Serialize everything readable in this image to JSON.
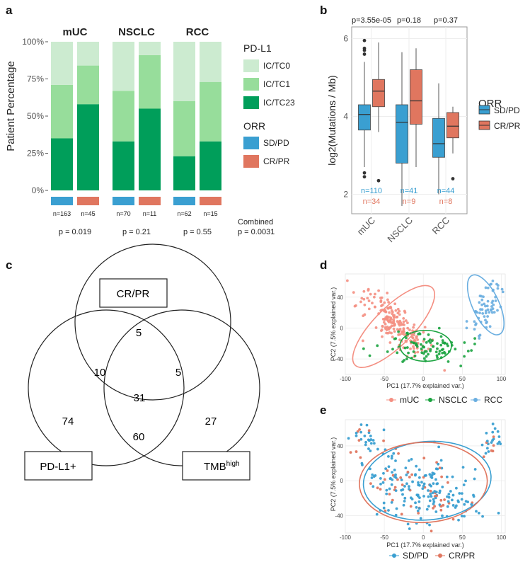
{
  "panels": {
    "a": "a",
    "b": "b",
    "c": "c",
    "d": "d",
    "e": "e"
  },
  "colors": {
    "ic_tc0": "#ccebd0",
    "ic_tc1": "#97dd9b",
    "ic_tc23": "#009e5a",
    "sdpd": "#3a9fd1",
    "crpr": "#e0765f",
    "muc": "#f48f82",
    "nsclc": "#1aa33f",
    "rcc": "#6aaee0"
  },
  "chart_data": [
    {
      "id": "a",
      "type": "bar",
      "ylabel": "Patient Percentage",
      "yticks": [
        "0%",
        "25%",
        "50%",
        "75%",
        "100%"
      ],
      "groups": [
        {
          "name": "mUC",
          "n_sdpd": "n=163",
          "n_crpr": "n=45",
          "p": "p = 0.019"
        },
        {
          "name": "NSCLC",
          "n_sdpd": "n=70",
          "n_crpr": "n=11",
          "p": "p = 0.21"
        },
        {
          "name": "RCC",
          "n_sdpd": "n=62",
          "n_crpr": "n=15",
          "p": "p = 0.55"
        }
      ],
      "bars": [
        {
          "group": "mUC",
          "orr": "SD/PD",
          "ic_tc23": 35,
          "ic_tc1": 36,
          "ic_tc0": 29
        },
        {
          "group": "mUC",
          "orr": "CR/PR",
          "ic_tc23": 58,
          "ic_tc1": 26,
          "ic_tc0": 16
        },
        {
          "group": "NSCLC",
          "orr": "SD/PD",
          "ic_tc23": 33,
          "ic_tc1": 34,
          "ic_tc0": 33
        },
        {
          "group": "NSCLC",
          "orr": "CR/PR",
          "ic_tc23": 55,
          "ic_tc1": 36,
          "ic_tc0": 9
        },
        {
          "group": "RCC",
          "orr": "SD/PD",
          "ic_tc23": 23,
          "ic_tc1": 37,
          "ic_tc0": 40
        },
        {
          "group": "RCC",
          "orr": "CR/PR",
          "ic_tc23": 33,
          "ic_tc1": 40,
          "ic_tc0": 27
        }
      ],
      "legend_pdl1_title": "PD-L1",
      "legend_pdl1": [
        "IC/TC0",
        "IC/TC1",
        "IC/TC23"
      ],
      "legend_orr_title": "ORR",
      "legend_orr": [
        "SD/PD",
        "CR/PR"
      ],
      "combined_label": "Combined",
      "combined_p": "p = 0.0031"
    },
    {
      "id": "b",
      "type": "box",
      "ylabel": "log2(Mutations / Mb)",
      "ylim": [
        1.5,
        6.3
      ],
      "yticks": [
        2,
        4,
        6
      ],
      "categories": [
        "mUC",
        "NSCLC",
        "RCC"
      ],
      "pvalues": [
        "p=3.55e-05",
        "p=0.18",
        "p=0.37"
      ],
      "n_sdpd": [
        "n=110",
        "n=41",
        "n=44"
      ],
      "n_crpr": [
        "n=34",
        "n=9",
        "n=8"
      ],
      "legend_title": "ORR",
      "legend": [
        "SD/PD",
        "CR/PR"
      ],
      "boxes": [
        {
          "cat": "mUC",
          "orr": "SD/PD",
          "wlo": 2.7,
          "q1": 3.65,
          "med": 4.05,
          "q3": 4.3,
          "whi": 5.4,
          "out": [
            2.55,
            2.45,
            5.6,
            5.7,
            5.75,
            5.95
          ]
        },
        {
          "cat": "mUC",
          "orr": "CR/PR",
          "wlo": 3.6,
          "q1": 4.25,
          "med": 4.65,
          "q3": 4.95,
          "whi": 5.9,
          "out": [
            2.35
          ]
        },
        {
          "cat": "NSCLC",
          "orr": "SD/PD",
          "wlo": 1.7,
          "q1": 2.8,
          "med": 3.85,
          "q3": 4.3,
          "whi": 5.65,
          "out": []
        },
        {
          "cat": "NSCLC",
          "orr": "CR/PR",
          "wlo": 2.7,
          "q1": 3.8,
          "med": 4.4,
          "q3": 5.2,
          "whi": 5.75,
          "out": []
        },
        {
          "cat": "RCC",
          "orr": "SD/PD",
          "wlo": 2.0,
          "q1": 2.95,
          "med": 3.3,
          "q3": 3.95,
          "whi": 4.85,
          "out": []
        },
        {
          "cat": "RCC",
          "orr": "CR/PR",
          "wlo": 3.05,
          "q1": 3.45,
          "med": 3.75,
          "q3": 4.1,
          "whi": 4.25,
          "out": [
            2.4
          ]
        }
      ]
    },
    {
      "id": "c",
      "type": "venn",
      "sets": [
        "CR/PR",
        "PD-L1+",
        "TMB"
      ],
      "tmb_sup": "high",
      "regions": {
        "cr_only": "5",
        "cr_pd": "10",
        "cr_tmb": "5",
        "all": "31",
        "pd_only": "74",
        "pd_tmb": "60",
        "tmb_only": "27"
      }
    },
    {
      "id": "d",
      "type": "scatter",
      "xlabel": "PC1 (17.7% explained var.)",
      "ylabel": "PC2 (7.5% explained var.)",
      "xlim": [
        -100,
        105
      ],
      "ylim": [
        -60,
        70
      ],
      "xticks": [
        -100,
        -50,
        0,
        50,
        100
      ],
      "yticks": [
        -40,
        0,
        40
      ],
      "legend": [
        "mUC",
        "NSCLC",
        "RCC"
      ],
      "clusters": [
        {
          "name": "mUC",
          "n": 200,
          "cx": -40,
          "cy": 8,
          "sx": 22,
          "sy": 22,
          "rot": -45,
          "spread": [
            2.2,
            0.55
          ]
        },
        {
          "name": "NSCLC",
          "n": 90,
          "cx": 5,
          "cy": -25,
          "sx": 25,
          "sy": 10,
          "rot": 0,
          "spread": [
            1,
            1
          ]
        },
        {
          "name": "RCC",
          "n": 70,
          "cx": 82,
          "cy": 30,
          "sx": 8,
          "sy": 22,
          "rot": -25,
          "spread": [
            1,
            1
          ]
        }
      ],
      "ellipses": [
        {
          "name": "mUC",
          "cx": -38,
          "cy": 2,
          "rx": 70,
          "ry": 25,
          "rot": -45
        },
        {
          "name": "NSCLC",
          "cx": 3,
          "cy": -23,
          "rx": 33,
          "ry": 20,
          "rot": 0
        },
        {
          "name": "RCC",
          "cx": 80,
          "cy": 30,
          "rx": 17,
          "ry": 42,
          "rot": -25
        }
      ]
    },
    {
      "id": "e",
      "type": "scatter",
      "xlabel": "PC1 (17.7% explained var.)",
      "ylabel": "PC2 (7.5% explained var.)",
      "xlim": [
        -100,
        105
      ],
      "ylim": [
        -60,
        70
      ],
      "xticks": [
        -100,
        -50,
        0,
        50,
        100
      ],
      "yticks": [
        -40,
        0,
        40
      ],
      "legend": [
        "SD/PD",
        "CR/PR"
      ],
      "ellipses": [
        {
          "name": "SD/PD",
          "cx": 5,
          "cy": 0,
          "rx": 82,
          "ry": 45,
          "rot": -5
        },
        {
          "name": "CR/PR",
          "cx": 0,
          "cy": -2,
          "rx": 82,
          "ry": 46,
          "rot": -2
        }
      ]
    }
  ]
}
